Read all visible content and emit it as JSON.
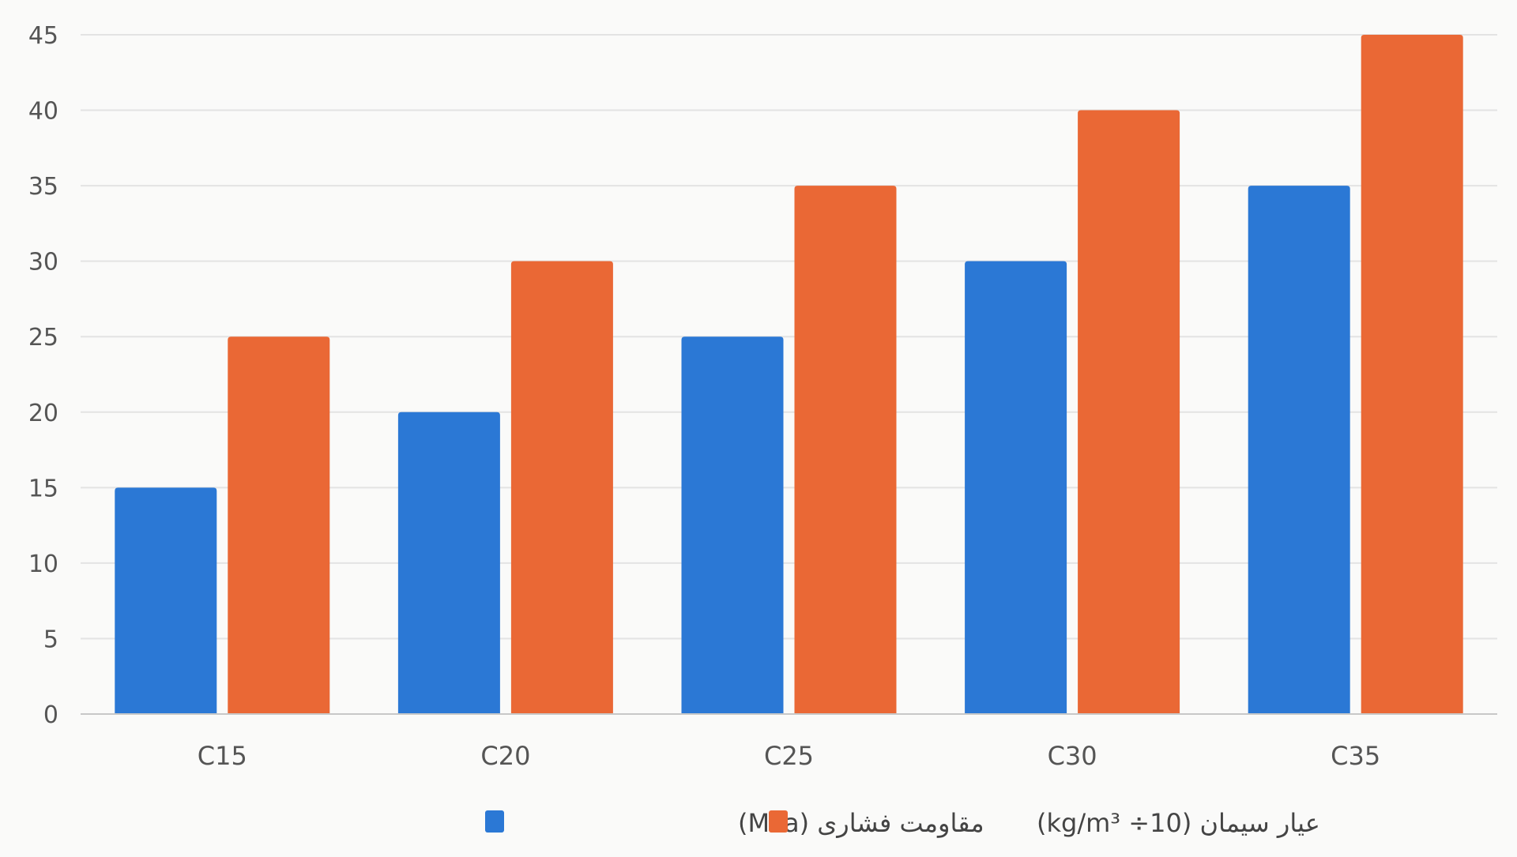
{
  "chart_data": {
    "type": "bar",
    "title": "",
    "xlabel": "",
    "ylabel": "",
    "categories": [
      "C15",
      "C20",
      "C25",
      "C30",
      "C35"
    ],
    "series": [
      {
        "name": "مقاومت فشاری (MPa)",
        "color": "#2b78d5",
        "values": [
          15,
          20,
          25,
          30,
          35
        ]
      },
      {
        "name": "عیار سیمان (kg/m³ ÷10)",
        "color": "#ea6835",
        "values": [
          25,
          30,
          35,
          40,
          45
        ]
      }
    ],
    "ylim": [
      0,
      45
    ],
    "yticks": [
      "0",
      "5",
      "10",
      "15",
      "20",
      "25",
      "30",
      "35",
      "40",
      "45"
    ],
    "grid": true,
    "legend_position": "bottom-center"
  }
}
